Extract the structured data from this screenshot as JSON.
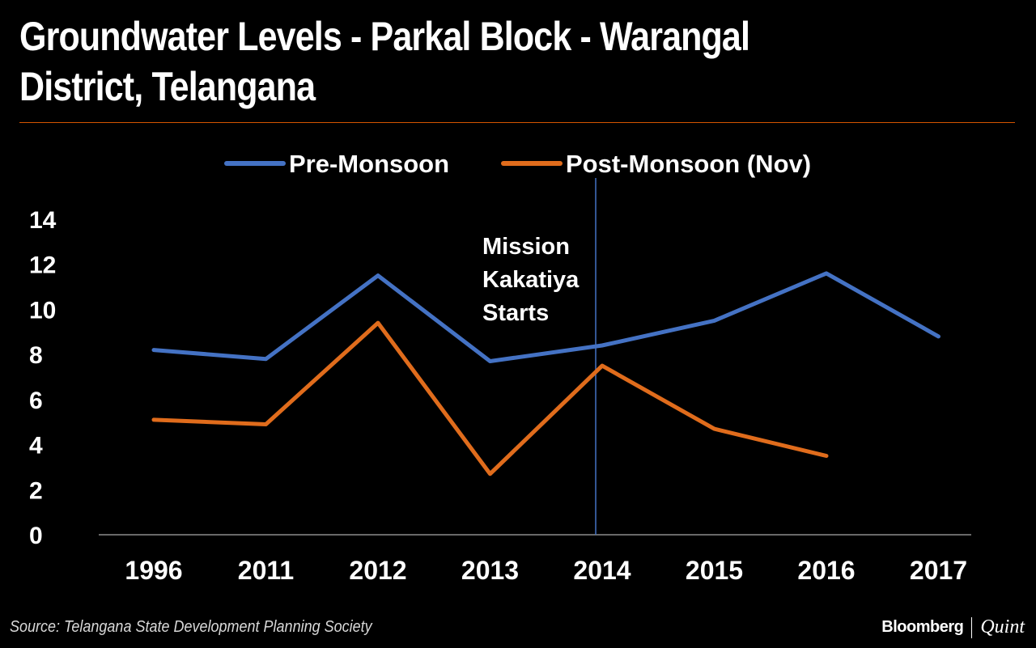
{
  "title": "Groundwater Levels - Parkal Block - Warangal\nDistrict, Telangana",
  "source": "Source: Telangana State Development Planning Society",
  "brand": {
    "primary": "Bloomberg",
    "secondary": "Quint"
  },
  "chart_data": {
    "type": "line",
    "title": "Groundwater Levels - Parkal Block - Warangal District, Telangana",
    "xlabel": "",
    "ylabel": "",
    "categories": [
      "1996",
      "2011",
      "2012",
      "2013",
      "2014",
      "2015",
      "2016",
      "2017"
    ],
    "ylim": [
      0,
      14
    ],
    "yticks": [
      0,
      2,
      4,
      6,
      8,
      10,
      12,
      14
    ],
    "grid": false,
    "legend": "top",
    "series": [
      {
        "name": "Pre-Monsoon",
        "color": "#4472c4",
        "values": [
          8.2,
          7.8,
          11.5,
          7.7,
          8.4,
          9.5,
          11.6,
          8.8
        ]
      },
      {
        "name": "Post-Monsoon (Nov)",
        "color": "#e06c1c",
        "values": [
          5.1,
          4.9,
          9.4,
          2.7,
          7.5,
          4.7,
          3.5,
          null
        ]
      }
    ],
    "annotation": {
      "text": [
        "Mission",
        "Kakatiya",
        "Starts"
      ],
      "at_category": "2014"
    }
  }
}
